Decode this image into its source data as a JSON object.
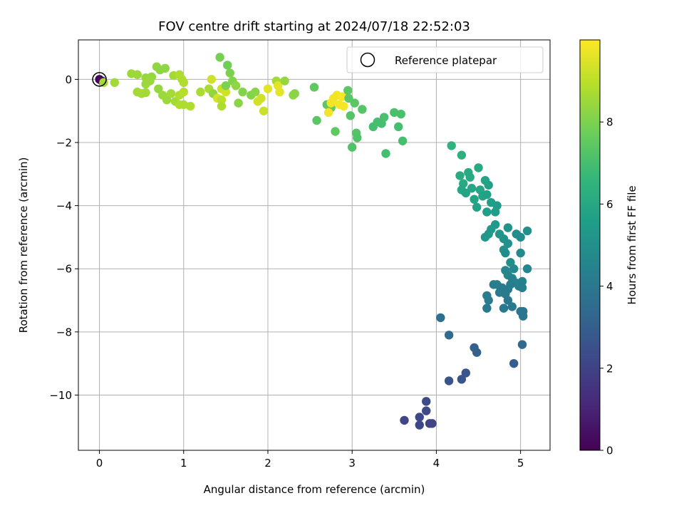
{
  "chart_data": {
    "type": "scatter",
    "title": "FOV centre drift starting at 2024/07/18 22:52:03",
    "xlabel": "Angular distance from reference (arcmin)",
    "ylabel": "Rotation from reference (arcmin)",
    "xlim": [
      -0.25,
      5.35
    ],
    "ylim": [
      -11.75,
      1.25
    ],
    "xticks": [
      0,
      1,
      2,
      3,
      4,
      5
    ],
    "yticks": [
      -10,
      -8,
      -6,
      -4,
      -2,
      0
    ],
    "xtick_labels": [
      "0",
      "1",
      "2",
      "3",
      "4",
      "5"
    ],
    "ytick_labels": [
      "−10",
      "−8",
      "−6",
      "−4",
      "−2",
      "0"
    ],
    "grid": true,
    "legend": {
      "position": "top-right",
      "entries": [
        "Reference platepar"
      ]
    },
    "reference": {
      "x": 0,
      "y": 0
    },
    "colorbar": {
      "label": "Hours from first FF file",
      "range": [
        0,
        10
      ],
      "ticks": [
        0,
        2,
        4,
        6,
        8
      ],
      "tick_labels": [
        "0",
        "2",
        "4",
        "6",
        "8"
      ],
      "colormap": "viridis"
    },
    "series": [
      {
        "points": [
          [
            0.0,
            0.0,
            0.05
          ],
          [
            0.03,
            -0.05,
            0.3
          ],
          [
            0.05,
            -0.1,
            8.6
          ],
          [
            0.18,
            -0.1,
            8.6
          ],
          [
            0.38,
            0.18,
            8.5
          ],
          [
            0.45,
            0.15,
            8.5
          ],
          [
            0.55,
            0.05,
            8.4
          ],
          [
            0.62,
            0.08,
            8.4
          ],
          [
            0.68,
            0.4,
            8.3
          ],
          [
            0.72,
            0.3,
            8.3
          ],
          [
            0.78,
            0.35,
            8.3
          ],
          [
            0.88,
            0.12,
            8.6
          ],
          [
            0.95,
            0.15,
            8.8
          ],
          [
            0.98,
            0.0,
            8.8
          ],
          [
            1.0,
            -0.1,
            8.8
          ],
          [
            0.55,
            -0.15,
            8.5
          ],
          [
            0.6,
            -0.05,
            8.5
          ],
          [
            0.7,
            -0.3,
            8.4
          ],
          [
            0.45,
            -0.4,
            8.6
          ],
          [
            0.5,
            -0.45,
            8.6
          ],
          [
            0.55,
            -0.42,
            8.6
          ],
          [
            0.75,
            -0.5,
            8.5
          ],
          [
            0.8,
            -0.65,
            8.5
          ],
          [
            0.85,
            -0.45,
            8.6
          ],
          [
            0.9,
            -0.7,
            8.6
          ],
          [
            0.95,
            -0.5,
            8.8
          ],
          [
            1.0,
            -0.4,
            8.9
          ],
          [
            0.95,
            -0.8,
            8.8
          ],
          [
            1.0,
            -0.8,
            8.8
          ],
          [
            1.08,
            -0.85,
            8.8
          ],
          [
            1.2,
            -0.4,
            8.7
          ],
          [
            1.3,
            -0.3,
            8.7
          ],
          [
            1.33,
            0.0,
            9.3
          ],
          [
            1.35,
            -0.45,
            8.3
          ],
          [
            1.4,
            -0.6,
            9.4
          ],
          [
            1.45,
            -0.65,
            9.0
          ],
          [
            1.45,
            -0.3,
            9.2
          ],
          [
            1.5,
            -0.4,
            9.3
          ],
          [
            1.45,
            -0.85,
            8.8
          ],
          [
            1.5,
            -0.2,
            8.0
          ],
          [
            1.55,
            0.2,
            8.0
          ],
          [
            1.58,
            -0.05,
            8.1
          ],
          [
            1.62,
            -0.2,
            8.3
          ],
          [
            1.65,
            -0.75,
            8.2
          ],
          [
            1.43,
            0.7,
            7.9
          ],
          [
            1.52,
            0.45,
            7.8
          ],
          [
            1.7,
            -0.4,
            8.1
          ],
          [
            1.8,
            -0.5,
            8.1
          ],
          [
            1.85,
            -0.4,
            8.2
          ],
          [
            1.88,
            -0.7,
            9.3
          ],
          [
            1.92,
            -0.6,
            9.3
          ],
          [
            1.95,
            -1.0,
            9.2
          ],
          [
            2.0,
            -0.3,
            9.6
          ],
          [
            2.1,
            -0.05,
            8.6
          ],
          [
            2.12,
            -0.2,
            9.6
          ],
          [
            2.14,
            -0.4,
            9.6
          ],
          [
            2.2,
            -0.05,
            8.4
          ],
          [
            2.3,
            -0.5,
            8.3
          ],
          [
            2.32,
            -0.45,
            8.2
          ],
          [
            2.55,
            -0.25,
            7.5
          ],
          [
            2.58,
            -1.3,
            7.4
          ],
          [
            2.7,
            -0.8,
            7.4
          ],
          [
            2.75,
            -0.9,
            7.5
          ],
          [
            2.72,
            -1.05,
            9.8
          ],
          [
            2.75,
            -0.75,
            9.8
          ],
          [
            2.78,
            -0.6,
            9.8
          ],
          [
            2.82,
            -0.5,
            9.8
          ],
          [
            2.85,
            -0.8,
            9.9
          ],
          [
            2.88,
            -0.55,
            9.9
          ],
          [
            2.9,
            -0.85,
            9.9
          ],
          [
            2.95,
            -0.35,
            7.4
          ],
          [
            2.96,
            -0.6,
            7.4
          ],
          [
            2.98,
            -1.15,
            7.3
          ],
          [
            3.0,
            -2.15,
            7.2
          ],
          [
            3.03,
            -0.75,
            7.4
          ],
          [
            3.05,
            -1.7,
            7.3
          ],
          [
            3.06,
            -1.85,
            7.2
          ],
          [
            3.12,
            -0.95,
            7.3
          ],
          [
            3.25,
            -1.5,
            7.0
          ],
          [
            3.3,
            -1.35,
            7.0
          ],
          [
            3.35,
            -1.4,
            7.0
          ],
          [
            3.38,
            -1.2,
            7.1
          ],
          [
            3.4,
            -2.35,
            7.0
          ],
          [
            3.5,
            -1.05,
            7.1
          ],
          [
            3.55,
            -1.5,
            7.0
          ],
          [
            3.58,
            -1.1,
            7.1
          ],
          [
            3.6,
            -1.95,
            7.0
          ],
          [
            2.8,
            -1.65,
            7.5
          ],
          [
            4.18,
            -2.1,
            6.4
          ],
          [
            4.3,
            -2.4,
            6.3
          ],
          [
            4.28,
            -3.05,
            6.1
          ],
          [
            4.32,
            -3.3,
            6.0
          ],
          [
            4.38,
            -2.95,
            6.1
          ],
          [
            4.4,
            -3.1,
            6.0
          ],
          [
            4.42,
            -3.45,
            5.9
          ],
          [
            4.3,
            -3.5,
            5.9
          ],
          [
            4.35,
            -3.6,
            5.8
          ],
          [
            4.45,
            -3.8,
            5.8
          ],
          [
            4.48,
            -4.05,
            5.7
          ],
          [
            4.5,
            -2.8,
            6.0
          ],
          [
            4.52,
            -3.5,
            5.9
          ],
          [
            4.55,
            -3.7,
            5.8
          ],
          [
            4.58,
            -3.2,
            5.8
          ],
          [
            4.6,
            -3.65,
            5.7
          ],
          [
            4.62,
            -3.35,
            5.7
          ],
          [
            4.65,
            -3.9,
            5.6
          ],
          [
            4.6,
            -4.2,
            5.6
          ],
          [
            4.7,
            -4.2,
            5.5
          ],
          [
            4.72,
            -4.0,
            5.5
          ],
          [
            4.65,
            -4.75,
            5.4
          ],
          [
            4.7,
            -4.6,
            5.4
          ],
          [
            4.58,
            -5.0,
            5.3
          ],
          [
            4.62,
            -4.9,
            5.3
          ],
          [
            4.75,
            -4.9,
            5.2
          ],
          [
            4.8,
            -5.05,
            5.1
          ],
          [
            4.85,
            -4.7,
            5.1
          ],
          [
            4.85,
            -5.2,
            5.0
          ],
          [
            4.8,
            -5.4,
            5.0
          ],
          [
            4.82,
            -5.5,
            4.9
          ],
          [
            4.88,
            -5.8,
            4.9
          ],
          [
            4.95,
            -4.9,
            4.9
          ],
          [
            5.0,
            -5.0,
            4.9
          ],
          [
            5.08,
            -4.8,
            5.0
          ],
          [
            5.0,
            -5.5,
            4.8
          ],
          [
            4.92,
            -6.0,
            4.7
          ],
          [
            4.82,
            -6.05,
            4.6
          ],
          [
            4.85,
            -6.2,
            4.6
          ],
          [
            4.9,
            -6.3,
            4.5
          ],
          [
            5.08,
            -6.0,
            4.6
          ],
          [
            4.95,
            -6.45,
            4.5
          ],
          [
            4.98,
            -6.55,
            4.4
          ],
          [
            5.02,
            -6.4,
            4.4
          ],
          [
            5.02,
            -6.6,
            4.3
          ],
          [
            4.6,
            -6.85,
            4.2
          ],
          [
            4.62,
            -7.0,
            4.2
          ],
          [
            4.68,
            -6.5,
            4.3
          ],
          [
            4.72,
            -6.5,
            4.3
          ],
          [
            4.78,
            -6.6,
            4.2
          ],
          [
            4.75,
            -6.75,
            4.1
          ],
          [
            4.82,
            -6.8,
            4.1
          ],
          [
            4.85,
            -6.65,
            4.1
          ],
          [
            4.88,
            -6.5,
            4.2
          ],
          [
            4.8,
            -7.25,
            4.0
          ],
          [
            4.9,
            -7.2,
            4.0
          ],
          [
            4.85,
            -7.0,
            4.0
          ],
          [
            4.6,
            -7.25,
            4.0
          ],
          [
            5.0,
            -7.35,
            3.9
          ],
          [
            5.03,
            -7.5,
            3.9
          ],
          [
            5.03,
            -7.35,
            3.9
          ],
          [
            4.05,
            -7.55,
            3.7
          ],
          [
            4.15,
            -8.1,
            3.5
          ],
          [
            4.45,
            -8.5,
            3.1
          ],
          [
            4.48,
            -8.65,
            3.0
          ],
          [
            4.35,
            -9.3,
            2.7
          ],
          [
            4.3,
            -9.5,
            2.6
          ],
          [
            4.15,
            -9.55,
            2.6
          ],
          [
            4.92,
            -9.0,
            3.0
          ],
          [
            5.02,
            -8.4,
            3.4
          ],
          [
            3.88,
            -10.2,
            2.3
          ],
          [
            3.88,
            -10.5,
            2.3
          ],
          [
            3.8,
            -10.7,
            2.2
          ],
          [
            3.62,
            -10.8,
            2.1
          ],
          [
            3.8,
            -10.95,
            2.2
          ],
          [
            3.92,
            -10.9,
            2.1
          ],
          [
            3.95,
            -10.9,
            2.1
          ]
        ]
      }
    ]
  }
}
